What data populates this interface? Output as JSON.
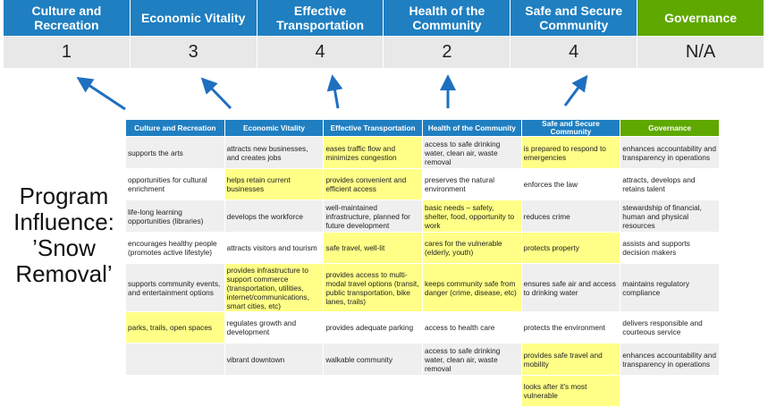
{
  "top": {
    "headers": [
      "Culture and Recreation",
      "Economic Vitality",
      "Effective Transportation",
      "Health of the Community",
      "Safe and Secure Community",
      "Governance"
    ],
    "scores": [
      "1",
      "3",
      "4",
      "2",
      "4",
      "N/A"
    ]
  },
  "side_label": "Program Influence: ’Snow Removal’",
  "colors": {
    "blue": "#1f7fc1",
    "green": "#5fa800",
    "highlight": "#ffff88",
    "arrow": "#1f6fbf"
  },
  "table": {
    "headers": [
      "Culture and Recreation",
      "Economic Vitality",
      "Effective Transportation",
      "Health of the Community",
      "Safe and Secure Community",
      "Governance"
    ],
    "rows": [
      {
        "cells": [
          "supports the arts",
          "attracts new businesses, and creates jobs",
          "eases traffic flow and minimizes congestion",
          "access to safe drinking water, clean air, waste removal",
          "is prepared to respond to emergencies",
          "enhances accountability and transparency in operations"
        ],
        "highlighted": [
          2,
          4
        ]
      },
      {
        "cells": [
          "opportunities for cultural enrichment",
          "helps retain current businesses",
          "provides convenient and efficient access",
          "preserves the natural environment",
          "enforces the law",
          "attracts, develops and retains talent"
        ],
        "highlighted": [
          1,
          2
        ]
      },
      {
        "cells": [
          "life-long learning opportunities (libraries)",
          "develops the workforce",
          "well-maintained infrastructure, planned for future development",
          "basic needs – safety, shelter, food, opportunity to work",
          "reduces crime",
          "stewardship of financial, human and physical resources"
        ],
        "highlighted": [
          3
        ]
      },
      {
        "cells": [
          "encourages healthy people (promotes active lifestyle)",
          "attracts visitors and tourism",
          "safe travel, well-lit",
          "cares for the vulnerable (elderly, youth)",
          "protects property",
          "assists and supports decision makers"
        ],
        "highlighted": [
          2,
          3,
          4
        ]
      },
      {
        "cells": [
          "supports community events, and entertainment options",
          "provides infrastructure to support commerce (transportation, utilities, internet/communications, smart cities, etc)",
          "provides access to multi-modal travel options (transit, public transportation, bike lanes, trails)",
          "keeps community safe from danger (crime, disease, etc)",
          "ensures safe air and access to drinking water",
          "maintains regulatory compliance"
        ],
        "highlighted": [
          1,
          2,
          3
        ]
      },
      {
        "cells": [
          "parks, trails, open spaces",
          "regulates growth and development",
          "provides adequate parking",
          "access to health care",
          "protects the environment",
          "delivers responsible and courteous service"
        ],
        "highlighted": [
          0
        ]
      },
      {
        "cells": [
          "",
          "vibrant downtown",
          "walkable community",
          "access to safe drinking water, clean air, waste removal",
          "provides safe travel and mobility",
          "enhances accountability and transparency in operations"
        ],
        "highlighted": [
          4
        ]
      },
      {
        "cells": [
          "",
          "",
          "",
          "",
          "looks after it's most vulnerable",
          ""
        ],
        "highlighted": [
          4
        ]
      }
    ]
  }
}
